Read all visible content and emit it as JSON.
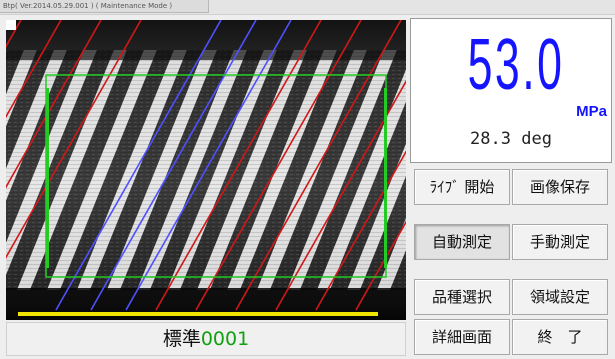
{
  "window": {
    "title": "Btp( Ver.2014.05.29.001 ) ( Maintenance Mode )"
  },
  "readout": {
    "stress_value": "53.0",
    "stress_unit": "MPa",
    "angle": "28.3 deg",
    "value_color": "#1414ff"
  },
  "buttons": {
    "live_start": "ﾗｲﾌﾞ 開始",
    "save_image": "画像保存",
    "auto_measure": "自動測定",
    "manual_measure": "手動測定",
    "select_type": "品種選択",
    "area_setting": "領域設定",
    "detail_screen": "詳細画面",
    "exit": "終　了"
  },
  "grade": {
    "label": "標準",
    "number": "0001",
    "number_color": "#11a011"
  },
  "camera": {
    "roi_color": "#22cc22",
    "red_line_color": "#d01818",
    "blue_line_color": "#5050ff",
    "bar_color": "#f2e600"
  }
}
